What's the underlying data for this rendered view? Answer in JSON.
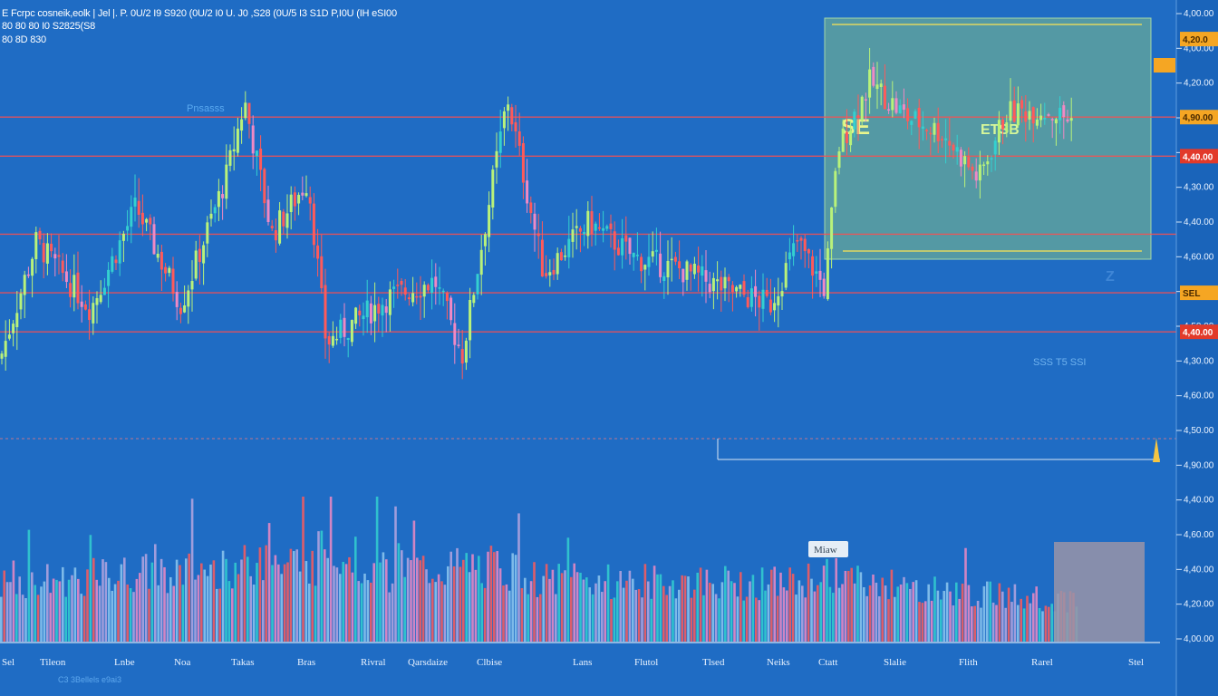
{
  "header": {
    "line1": "E Fcrpc cosneik,eolk | Jel |. P. 0U/2 I9 S920 (0U/2 I0 U. J0 ,S28 (0U/5 I3 S1D P,I0U (IH eSI00",
    "line2": "80 80 80 I0 S2825(S8",
    "line3": "80 8D 830"
  },
  "colors": {
    "background": "#1f6cc4",
    "up": "#b9f27a",
    "down": "#ff5a5a",
    "teal": "#34d0d0",
    "pink": "#f089c4",
    "highlight_box": "#7fc08a",
    "level_line": "#ff4e4e",
    "yellow_line": "#e0d860",
    "price_tag_orange": "#f5a623",
    "price_tag_red": "#e23a2a"
  },
  "overlay": {
    "box_label_left": "SE",
    "box_label_right": "ETSB",
    "small_note": "Pnsasss",
    "volume_tag": "Miaw",
    "mid_caption": "SSS T5 SSI",
    "corner_mark": "Z"
  },
  "chart_data": {
    "type": "candlestick",
    "title": "",
    "xlabel": "",
    "ylabel": "",
    "ylim": [
      0,
      1300
    ],
    "grid": false,
    "y_ticks": [
      "4,00.00",
      "4,00.00",
      "4,20.00",
      "4,10.00",
      "4,50.00",
      "4,30.00",
      "4,40.00",
      "4,60.00",
      "4,20.00",
      "4,50.00",
      "4,30.00",
      "4,60.00",
      "4,50.00",
      "4,90.00",
      "4,40.00",
      "4,60.00",
      "4,40.00",
      "4,20.00",
      "4,00.00"
    ],
    "x_labels": [
      "Sel",
      "Tileon",
      "Lnbe",
      "Noa",
      "Takas",
      "Bras",
      "Rivral",
      "Qarsdaize",
      "Clbise",
      "Lans",
      "Flutol",
      "Tlsed",
      "Neiks",
      "Ctatt",
      "Slalie",
      "Flith",
      "Rarel",
      "Stel"
    ],
    "x_sublabel": "C3 3Bellels e9ai3",
    "price_levels": [
      1000,
      900,
      700,
      550,
      450
    ],
    "price_tags": [
      {
        "text": "4,20.0",
        "value": 1200,
        "style": "orange"
      },
      {
        "text": "4,90.00",
        "value": 1000,
        "style": "orange"
      },
      {
        "text": "4,40.00",
        "value": 900,
        "style": "red"
      },
      {
        "text": "SEL",
        "value": 550,
        "style": "orange"
      },
      {
        "text": "4,40.00",
        "value": 450,
        "style": "red"
      }
    ],
    "price_anchors": [
      [
        0,
        380
      ],
      [
        40,
        680
      ],
      [
        100,
        510
      ],
      [
        150,
        770
      ],
      [
        200,
        520
      ],
      [
        250,
        850
      ],
      [
        270,
        1040
      ],
      [
        300,
        700
      ],
      [
        340,
        840
      ],
      [
        360,
        420
      ],
      [
        400,
        490
      ],
      [
        430,
        540
      ],
      [
        480,
        580
      ],
      [
        510,
        390
      ],
      [
        560,
        1050
      ],
      [
        600,
        600
      ],
      [
        650,
        730
      ],
      [
        700,
        640
      ],
      [
        750,
        610
      ],
      [
        800,
        560
      ],
      [
        850,
        520
      ],
      [
        880,
        680
      ],
      [
        910,
        560
      ],
      [
        925,
        920
      ],
      [
        960,
        1090
      ],
      [
        1000,
        1000
      ],
      [
        1040,
        960
      ],
      [
        1080,
        840
      ],
      [
        1110,
        1010
      ],
      [
        1150,
        1020
      ],
      [
        1185,
        990
      ]
    ],
    "volume": {
      "max": 100,
      "levels": [
        [
          0,
          40
        ],
        [
          350,
          55
        ],
        [
          360,
          70
        ],
        [
          380,
          62
        ],
        [
          420,
          48
        ],
        [
          540,
          52
        ],
        [
          600,
          42
        ],
        [
          880,
          40
        ],
        [
          915,
          48
        ],
        [
          960,
          38
        ],
        [
          1190,
          28
        ]
      ]
    }
  }
}
